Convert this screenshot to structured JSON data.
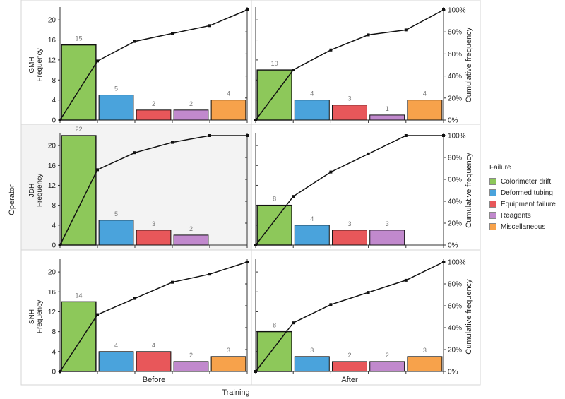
{
  "chart_data": {
    "type": "bar",
    "title": "",
    "xlabel": "Training",
    "ylabel_outer": "Operator",
    "ylabel_left": "Frequency",
    "ylabel_right": "Cumulative frequency",
    "columns": [
      "Before",
      "After"
    ],
    "rows": [
      "GMH",
      "JDH",
      "SNH"
    ],
    "categories": [
      "Colorimeter drift",
      "Deformed tubing",
      "Equipment failure",
      "Reagents",
      "Miscellaneous"
    ],
    "colors": {
      "Colorimeter drift": "#8dc85a",
      "Deformed tubing": "#4aa3dc",
      "Equipment failure": "#e8575a",
      "Reagents": "#c189cd",
      "Miscellaneous": "#f7a24b"
    },
    "ylim": [
      0,
      22
    ],
    "yticks": [
      0,
      4,
      8,
      12,
      16,
      20
    ],
    "cum_ticks": [
      "0%",
      "20%",
      "40%",
      "60%",
      "80%",
      "100%"
    ],
    "legend": {
      "title": "Failure",
      "position": "right"
    },
    "panels": [
      {
        "row": "GMH",
        "column": "Before",
        "values": [
          15,
          5,
          2,
          2,
          4
        ],
        "cumulative_percent": [
          0,
          53.6,
          71.4,
          78.6,
          85.7,
          100
        ],
        "highlighted": false
      },
      {
        "row": "GMH",
        "column": "After",
        "values": [
          10,
          4,
          3,
          1,
          4
        ],
        "cumulative_percent": [
          0,
          45.5,
          63.6,
          77.3,
          81.8,
          100
        ],
        "highlighted": false
      },
      {
        "row": "JDH",
        "column": "Before",
        "values": [
          22,
          5,
          3,
          2,
          null
        ],
        "cumulative_percent": [
          0,
          68.8,
          84.4,
          93.8,
          100,
          100
        ],
        "highlighted": true
      },
      {
        "row": "JDH",
        "column": "After",
        "values": [
          8,
          4,
          3,
          3,
          null
        ],
        "cumulative_percent": [
          0,
          44.4,
          66.7,
          83.3,
          100,
          100
        ],
        "highlighted": false
      },
      {
        "row": "SNH",
        "column": "Before",
        "values": [
          14,
          4,
          4,
          2,
          3
        ],
        "cumulative_percent": [
          0,
          51.9,
          66.7,
          81.5,
          88.9,
          100
        ],
        "highlighted": false
      },
      {
        "row": "SNH",
        "column": "After",
        "values": [
          8,
          3,
          2,
          2,
          3
        ],
        "cumulative_percent": [
          0,
          44.4,
          61.1,
          72.2,
          83.3,
          100
        ],
        "highlighted": false
      }
    ]
  }
}
